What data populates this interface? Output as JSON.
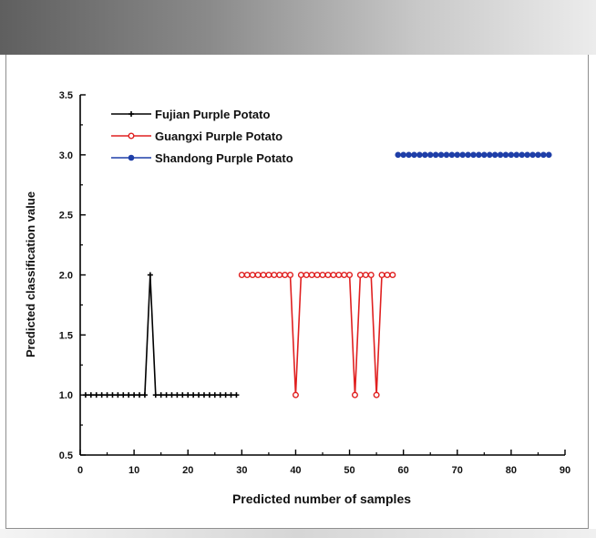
{
  "chart_data": {
    "type": "line",
    "title": "",
    "xlabel": "Predicted number of samples",
    "ylabel": "Predicted classification value",
    "xlim": [
      0,
      90
    ],
    "ylim": [
      0.5,
      3.5
    ],
    "xticks": [
      "0",
      "10",
      "20",
      "30",
      "40",
      "50",
      "60",
      "70",
      "80",
      "90"
    ],
    "yticks": [
      "0.5",
      "1.0",
      "1.5",
      "2.0",
      "2.5",
      "3.0",
      "3.5"
    ],
    "grid": false,
    "legend_position": "top-left",
    "series": [
      {
        "name": "Fujian Purple Potato",
        "color": "#000000",
        "marker": "plus",
        "x": [
          1,
          2,
          3,
          4,
          5,
          6,
          7,
          8,
          9,
          10,
          11,
          12,
          13,
          14,
          15,
          16,
          17,
          18,
          19,
          20,
          21,
          22,
          23,
          24,
          25,
          26,
          27,
          28,
          29
        ],
        "y": [
          1,
          1,
          1,
          1,
          1,
          1,
          1,
          1,
          1,
          1,
          1,
          1,
          2,
          1,
          1,
          1,
          1,
          1,
          1,
          1,
          1,
          1,
          1,
          1,
          1,
          1,
          1,
          1,
          1
        ]
      },
      {
        "name": "Guangxi Purple Potato",
        "color": "#e02020",
        "marker": "circle-open",
        "x": [
          30,
          31,
          32,
          33,
          34,
          35,
          36,
          37,
          38,
          39,
          40,
          41,
          42,
          43,
          44,
          45,
          46,
          47,
          48,
          49,
          50,
          51,
          52,
          53,
          54,
          55,
          56,
          57,
          58
        ],
        "y": [
          2,
          2,
          2,
          2,
          2,
          2,
          2,
          2,
          2,
          2,
          1,
          2,
          2,
          2,
          2,
          2,
          2,
          2,
          2,
          2,
          2,
          1,
          2,
          2,
          2,
          1,
          2,
          2,
          2
        ]
      },
      {
        "name": "Shandong Purple Potato",
        "color": "#1f3fa8",
        "marker": "circle-filled",
        "x": [
          59,
          60,
          61,
          62,
          63,
          64,
          65,
          66,
          67,
          68,
          69,
          70,
          71,
          72,
          73,
          74,
          75,
          76,
          77,
          78,
          79,
          80,
          81,
          82,
          83,
          84,
          85,
          86,
          87
        ],
        "y": [
          3,
          3,
          3,
          3,
          3,
          3,
          3,
          3,
          3,
          3,
          3,
          3,
          3,
          3,
          3,
          3,
          3,
          3,
          3,
          3,
          3,
          3,
          3,
          3,
          3,
          3,
          3,
          3,
          3
        ]
      }
    ]
  }
}
